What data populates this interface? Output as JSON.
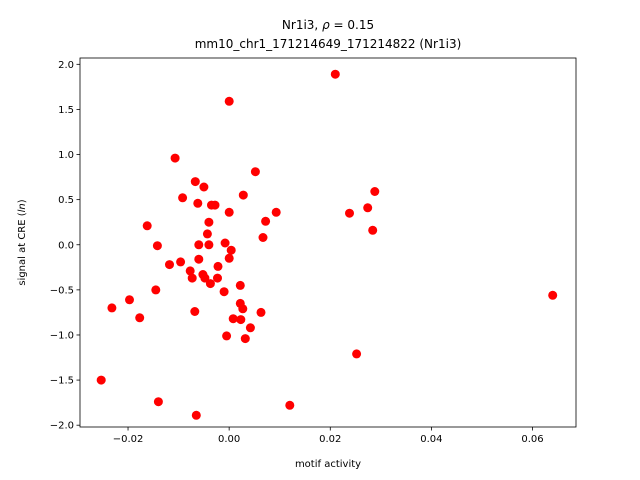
{
  "chart_data": {
    "type": "scatter",
    "title_line1_prefix": "Nr1i3, ",
    "title_line1_rho": "ρ",
    "title_line1_suffix": " = 0.15",
    "title_line2": "mm10_chr1_171214649_171214822 (Nr1i3)",
    "xlabel": "motif activity",
    "ylabel_prefix": "signal at CRE (",
    "ylabel_italic": "ln",
    "ylabel_suffix": ")",
    "xlim": [
      -0.0295,
      0.0686
    ],
    "ylim": [
      -2.02,
      2.07
    ],
    "xticks": [
      {
        "value": -0.02,
        "label": "−0.02"
      },
      {
        "value": 0.0,
        "label": "0.00"
      },
      {
        "value": 0.02,
        "label": "0.02"
      },
      {
        "value": 0.04,
        "label": "0.04"
      },
      {
        "value": 0.06,
        "label": "0.06"
      }
    ],
    "yticks": [
      {
        "value": -2.0,
        "label": "−2.0"
      },
      {
        "value": -1.5,
        "label": "−1.5"
      },
      {
        "value": -1.0,
        "label": "−1.0"
      },
      {
        "value": -0.5,
        "label": "−0.5"
      },
      {
        "value": 0.0,
        "label": "0.0"
      },
      {
        "value": 0.5,
        "label": "0.5"
      },
      {
        "value": 1.0,
        "label": "1.0"
      },
      {
        "value": 1.5,
        "label": "1.5"
      },
      {
        "value": 2.0,
        "label": "2.0"
      }
    ],
    "grid": false,
    "marker_color": "#ff0000",
    "points": [
      {
        "x": 0.021,
        "y": 1.89
      },
      {
        "x": 0.0,
        "y": 1.59
      },
      {
        "x": -0.0107,
        "y": 0.96
      },
      {
        "x": 0.0052,
        "y": 0.81
      },
      {
        "x": -0.0067,
        "y": 0.7
      },
      {
        "x": -0.005,
        "y": 0.64
      },
      {
        "x": 0.0288,
        "y": 0.59
      },
      {
        "x": -0.0092,
        "y": 0.52
      },
      {
        "x": 0.0028,
        "y": 0.55
      },
      {
        "x": -0.0062,
        "y": 0.46
      },
      {
        "x": -0.0035,
        "y": 0.44
      },
      {
        "x": -0.0028,
        "y": 0.44
      },
      {
        "x": 0.0274,
        "y": 0.41
      },
      {
        "x": 0.0,
        "y": 0.36
      },
      {
        "x": 0.0093,
        "y": 0.36
      },
      {
        "x": 0.0238,
        "y": 0.35
      },
      {
        "x": -0.004,
        "y": 0.25
      },
      {
        "x": 0.0072,
        "y": 0.26
      },
      {
        "x": -0.0162,
        "y": 0.21
      },
      {
        "x": 0.0284,
        "y": 0.16
      },
      {
        "x": -0.0043,
        "y": 0.12
      },
      {
        "x": 0.0067,
        "y": 0.08
      },
      {
        "x": -0.0142,
        "y": -0.01
      },
      {
        "x": -0.006,
        "y": 0.0
      },
      {
        "x": -0.004,
        "y": 0.0
      },
      {
        "x": -0.0008,
        "y": 0.02
      },
      {
        "x": 0.0004,
        "y": -0.06
      },
      {
        "x": -0.006,
        "y": -0.16
      },
      {
        "x": 0.0,
        "y": -0.15
      },
      {
        "x": -0.0096,
        "y": -0.19
      },
      {
        "x": -0.0118,
        "y": -0.22
      },
      {
        "x": -0.0022,
        "y": -0.24
      },
      {
        "x": -0.0077,
        "y": -0.29
      },
      {
        "x": -0.0052,
        "y": -0.33
      },
      {
        "x": -0.0073,
        "y": -0.37
      },
      {
        "x": -0.0048,
        "y": -0.37
      },
      {
        "x": -0.0023,
        "y": -0.37
      },
      {
        "x": -0.0037,
        "y": -0.43
      },
      {
        "x": 0.0022,
        "y": -0.45
      },
      {
        "x": -0.0145,
        "y": -0.5
      },
      {
        "x": -0.001,
        "y": -0.52
      },
      {
        "x": 0.064,
        "y": -0.56
      },
      {
        "x": -0.0197,
        "y": -0.61
      },
      {
        "x": 0.0022,
        "y": -0.65
      },
      {
        "x": -0.0232,
        "y": -0.7
      },
      {
        "x": 0.0027,
        "y": -0.71
      },
      {
        "x": -0.0068,
        "y": -0.74
      },
      {
        "x": 0.0063,
        "y": -0.75
      },
      {
        "x": -0.0177,
        "y": -0.81
      },
      {
        "x": 0.0008,
        "y": -0.82
      },
      {
        "x": 0.0023,
        "y": -0.83
      },
      {
        "x": 0.0042,
        "y": -0.92
      },
      {
        "x": -0.0005,
        "y": -1.01
      },
      {
        "x": 0.0032,
        "y": -1.04
      },
      {
        "x": 0.0252,
        "y": -1.21
      },
      {
        "x": -0.0253,
        "y": -1.5
      },
      {
        "x": -0.014,
        "y": -1.74
      },
      {
        "x": 0.012,
        "y": -1.78
      },
      {
        "x": -0.0065,
        "y": -1.89
      }
    ]
  }
}
